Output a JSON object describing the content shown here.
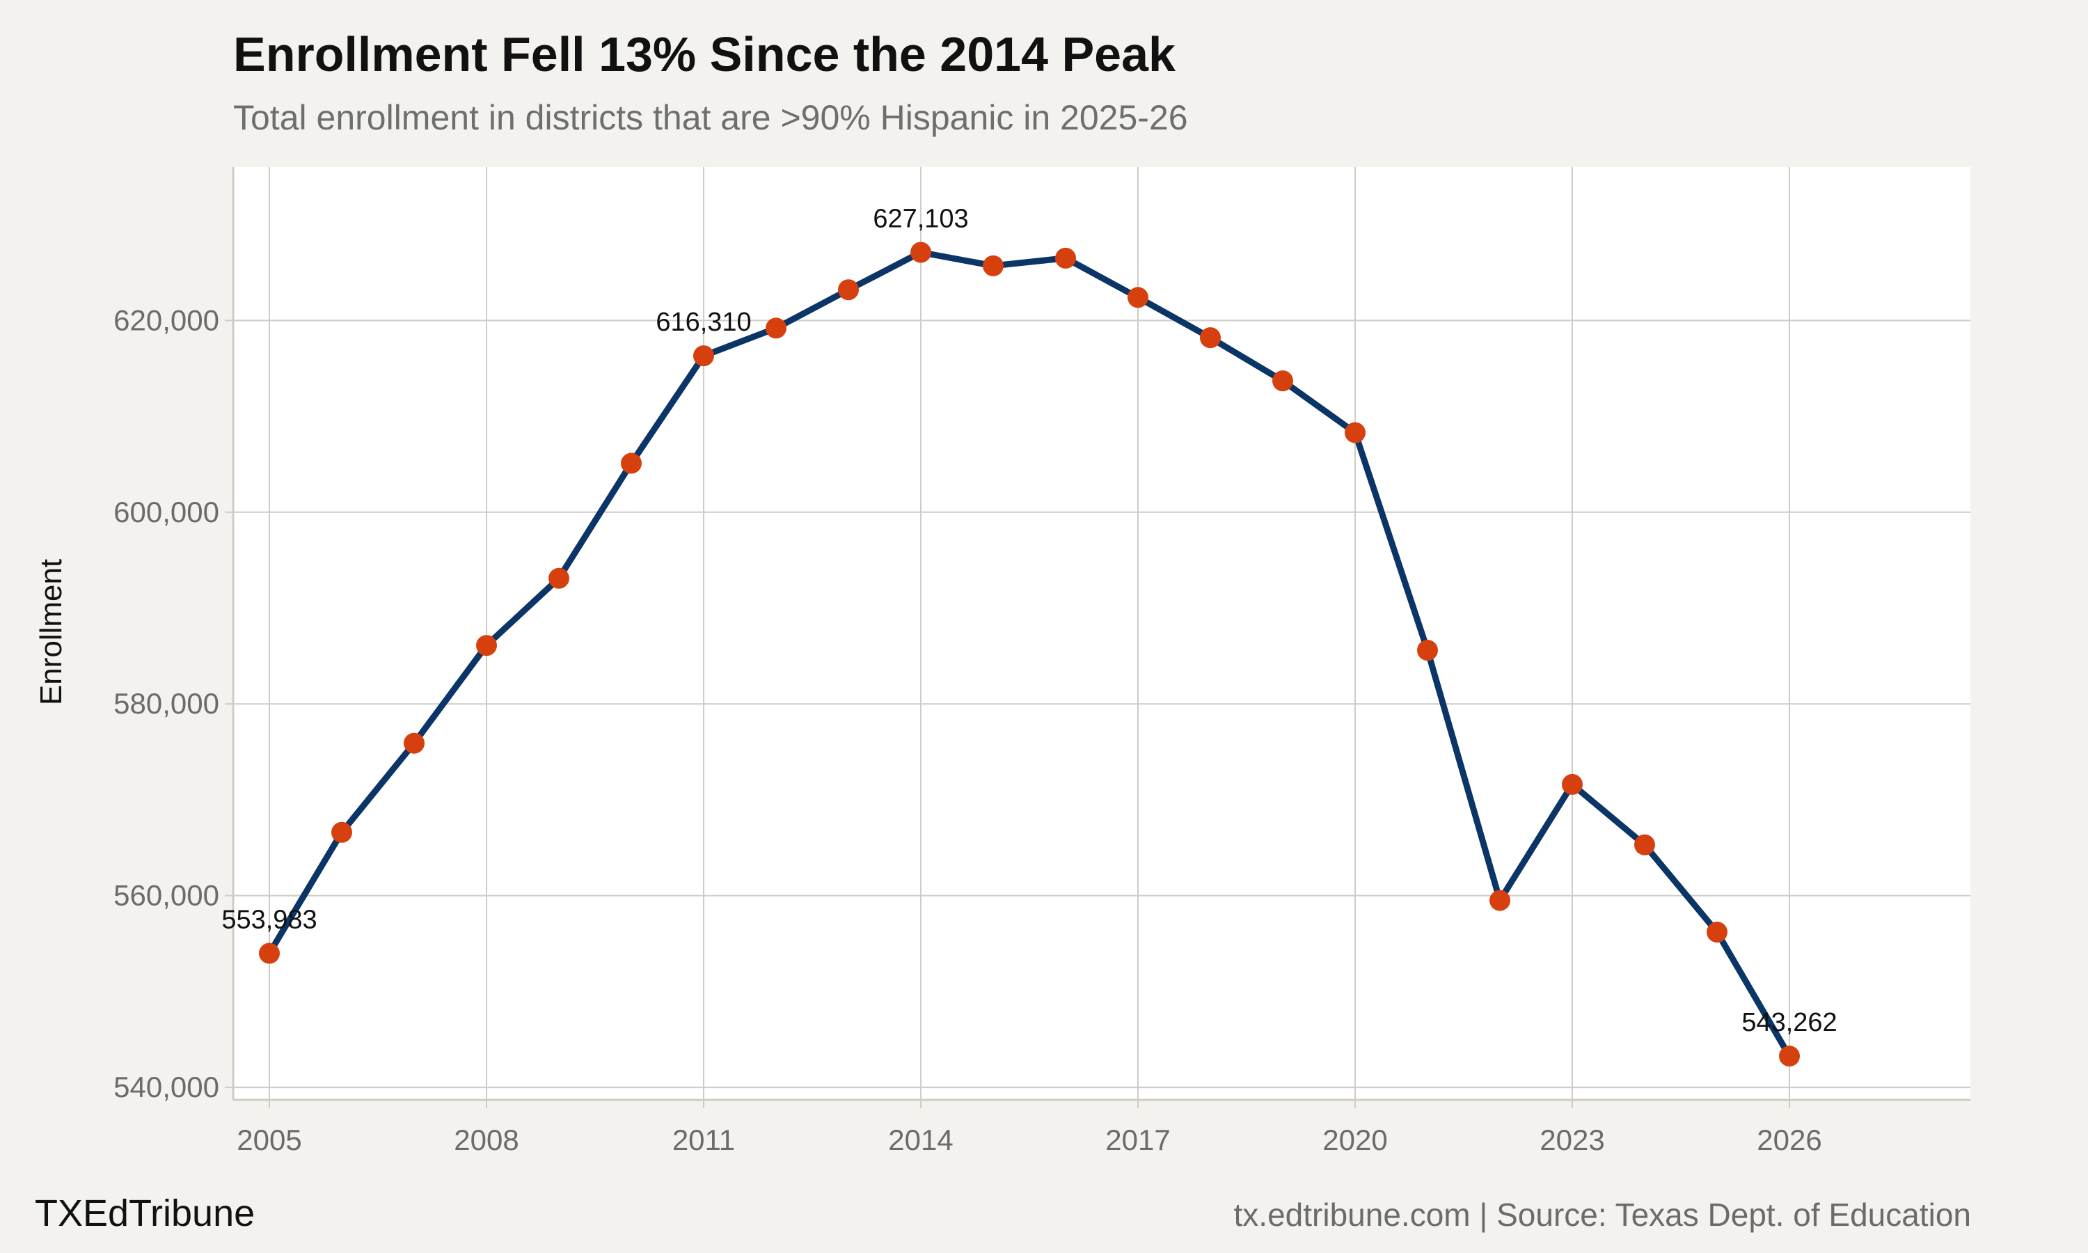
{
  "title": "Enrollment Fell 13% Since the 2014 Peak",
  "subtitle": "Total enrollment in districts that are >90% Hispanic in 2025-26",
  "brand": "TXEdTribune",
  "credit": "tx.edtribune.com | Source: Texas Dept. of Education",
  "colors": {
    "line": "#0b3566",
    "point": "#d6400f",
    "plot_background": "#ffffff",
    "page_background": "#f4f2ee",
    "grid": "#cfcbc5"
  },
  "chart_data": {
    "type": "line",
    "title": "Enrollment Fell 13% Since the 2014 Peak",
    "subtitle": "Total enrollment in districts that are >90% Hispanic in 2025-26",
    "xlabel": "",
    "ylabel": "Enrollment",
    "x": [
      2005,
      2006,
      2007,
      2008,
      2009,
      2010,
      2011,
      2012,
      2013,
      2014,
      2015,
      2016,
      2017,
      2018,
      2019,
      2020,
      2021,
      2022,
      2023,
      2024,
      2025,
      2026
    ],
    "series": [
      {
        "values": [
          553983,
          566600,
          575900,
          586100,
          593100,
          605100,
          616310,
          619200,
          623200,
          627103,
          625700,
          626500,
          622400,
          618200,
          613700,
          608300,
          585600,
          559500,
          571600,
          565300,
          556200,
          543262
        ]
      }
    ],
    "xlim": [
      2004.5,
      2028.5
    ],
    "ylim": [
      538700,
      636000
    ],
    "xticks": [
      2005,
      2008,
      2011,
      2014,
      2017,
      2020,
      2023,
      2026
    ],
    "xtick_labels": [
      "2005",
      "2008",
      "2011",
      "2014",
      "2017",
      "2020",
      "2023",
      "2026"
    ],
    "yticks": [
      540000,
      560000,
      580000,
      600000,
      620000
    ],
    "ytick_labels": [
      "540,000",
      "560,000",
      "580,000",
      "600,000",
      "620,000"
    ],
    "grid": true,
    "annotations": [
      {
        "x": 2005,
        "y": 553983,
        "text": "553,983"
      },
      {
        "x": 2011,
        "y": 616310,
        "text": "616,310"
      },
      {
        "x": 2014,
        "y": 627103,
        "text": "627,103"
      },
      {
        "x": 2026,
        "y": 543262,
        "text": "543,262"
      }
    ]
  }
}
